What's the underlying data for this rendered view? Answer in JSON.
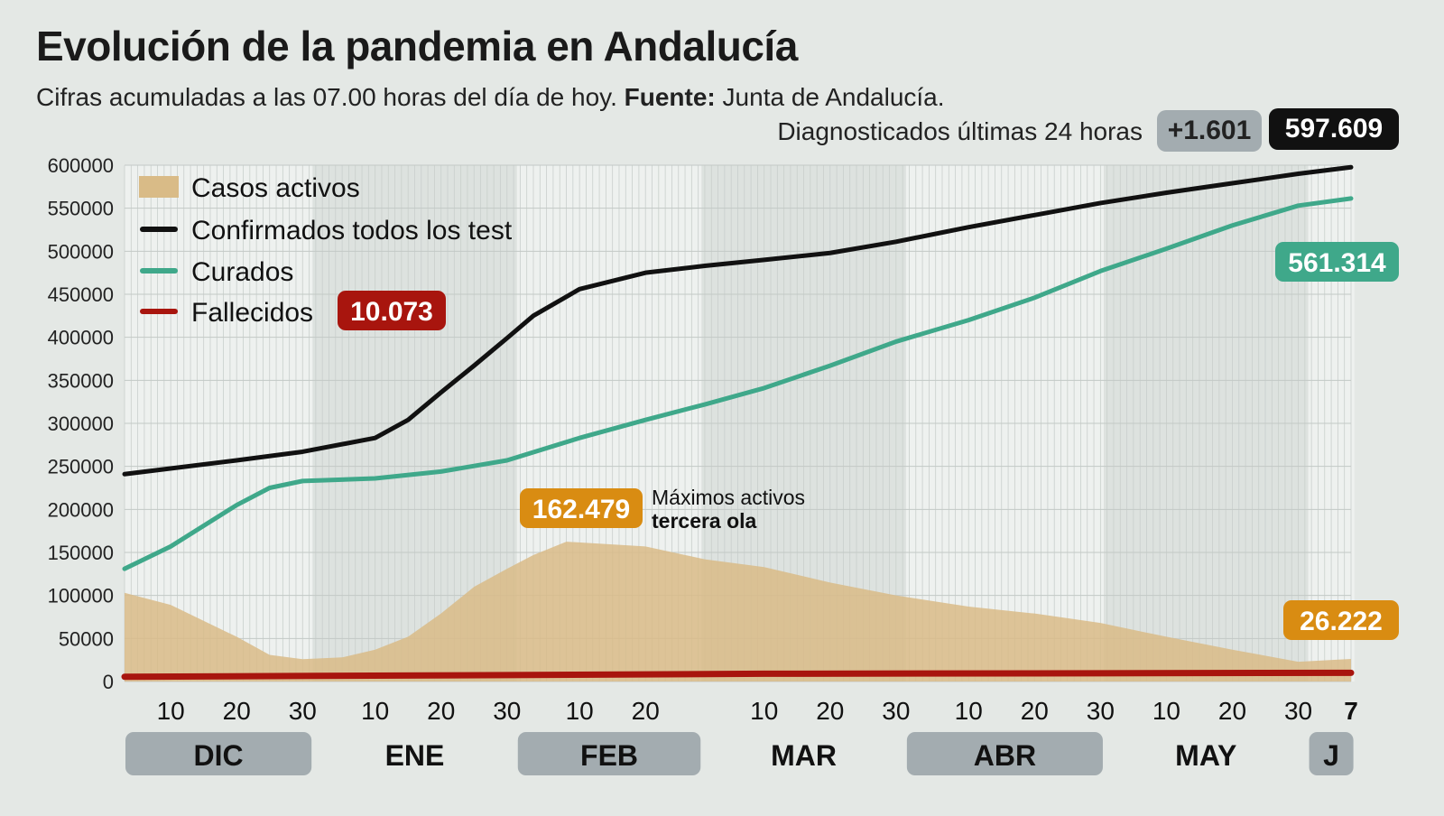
{
  "header": {
    "title": "Evolución de la pandemia en Andalucía",
    "subtitle": "Cifras acumuladas a las 07.00 horas del día de hoy.",
    "source_label": "Fuente:",
    "source": "Junta de Andalucía.",
    "diag_label": "Diagnosticados últimas 24 horas",
    "diag_delta": "+1.601",
    "diag_total": "597.609"
  },
  "chart_data": {
    "type": "area+line",
    "ylim": [
      0,
      600000
    ],
    "yticks": [
      "0",
      "50000",
      "100000",
      "150000",
      "200000",
      "250000",
      "300000",
      "350000",
      "400000",
      "450000",
      "500000",
      "550000",
      "600000"
    ],
    "xticks": [
      {
        "date": "12-10",
        "label": "10"
      },
      {
        "date": "12-20",
        "label": "20"
      },
      {
        "date": "12-30",
        "label": "30"
      },
      {
        "date": "01-10",
        "label": "10"
      },
      {
        "date": "01-20",
        "label": "20"
      },
      {
        "date": "01-30",
        "label": "30"
      },
      {
        "date": "02-10",
        "label": "10"
      },
      {
        "date": "02-20",
        "label": "20"
      },
      {
        "date": "03-10",
        "label": "10"
      },
      {
        "date": "03-20",
        "label": "20"
      },
      {
        "date": "03-30",
        "label": "30"
      },
      {
        "date": "04-10",
        "label": "10"
      },
      {
        "date": "04-20",
        "label": "20"
      },
      {
        "date": "04-30",
        "label": "30"
      },
      {
        "date": "05-10",
        "label": "10"
      },
      {
        "date": "05-20",
        "label": "20"
      },
      {
        "date": "05-30",
        "label": "30"
      },
      {
        "date": "06-07",
        "label": "7"
      }
    ],
    "months": [
      {
        "label": "DIC",
        "start": "12-03",
        "end": "12-31",
        "pill": true
      },
      {
        "label": "ENE",
        "start": "01-01",
        "end": "01-31",
        "pill": false
      },
      {
        "label": "FEB",
        "start": "02-01",
        "end": "02-28",
        "pill": true
      },
      {
        "label": "MAR",
        "start": "03-01",
        "end": "03-31",
        "pill": false
      },
      {
        "label": "ABR",
        "start": "04-01",
        "end": "04-30",
        "pill": true
      },
      {
        "label": "MAY",
        "start": "05-01",
        "end": "05-31",
        "pill": false
      },
      {
        "label": "J",
        "start": "06-01",
        "end": "06-07",
        "pill": true
      }
    ],
    "series": [
      {
        "name": "Casos activos",
        "kind": "area",
        "color": "#d9bb87",
        "points": [
          [
            "12-03",
            103000
          ],
          [
            "12-10",
            89000
          ],
          [
            "12-20",
            52000
          ],
          [
            "12-25",
            31000
          ],
          [
            "12-30",
            26000
          ],
          [
            "01-05",
            28000
          ],
          [
            "01-10",
            37000
          ],
          [
            "01-15",
            52000
          ],
          [
            "01-20",
            79000
          ],
          [
            "01-25",
            110000
          ],
          [
            "01-30",
            131000
          ],
          [
            "02-03",
            147000
          ],
          [
            "02-08",
            162479
          ],
          [
            "02-20",
            157000
          ],
          [
            "03-01",
            142000
          ],
          [
            "03-10",
            133000
          ],
          [
            "03-20",
            115000
          ],
          [
            "03-30",
            100000
          ],
          [
            "04-10",
            87000
          ],
          [
            "04-20",
            79000
          ],
          [
            "04-30",
            68000
          ],
          [
            "05-10",
            52000
          ],
          [
            "05-20",
            37000
          ],
          [
            "05-30",
            23000
          ],
          [
            "06-07",
            26222
          ]
        ]
      },
      {
        "name": "Confirmados todos los test",
        "kind": "line",
        "color": "#111111",
        "points": [
          [
            "12-03",
            241000
          ],
          [
            "12-20",
            257000
          ],
          [
            "12-30",
            267000
          ],
          [
            "01-10",
            283000
          ],
          [
            "01-15",
            304000
          ],
          [
            "01-20",
            336000
          ],
          [
            "01-25",
            367000
          ],
          [
            "01-30",
            399000
          ],
          [
            "02-03",
            425000
          ],
          [
            "02-10",
            456000
          ],
          [
            "02-20",
            475000
          ],
          [
            "03-01",
            483000
          ],
          [
            "03-10",
            490000
          ],
          [
            "03-20",
            498000
          ],
          [
            "03-30",
            511000
          ],
          [
            "04-10",
            528000
          ],
          [
            "04-20",
            542000
          ],
          [
            "04-30",
            556000
          ],
          [
            "05-10",
            568000
          ],
          [
            "05-20",
            579000
          ],
          [
            "05-30",
            590000
          ],
          [
            "06-07",
            597609
          ]
        ]
      },
      {
        "name": "Curados",
        "kind": "line",
        "color": "#3fa88a",
        "points": [
          [
            "12-03",
            131000
          ],
          [
            "12-10",
            157000
          ],
          [
            "12-20",
            205000
          ],
          [
            "12-25",
            225000
          ],
          [
            "12-30",
            233000
          ],
          [
            "01-10",
            236000
          ],
          [
            "01-20",
            244000
          ],
          [
            "01-30",
            257000
          ],
          [
            "02-10",
            283000
          ],
          [
            "02-20",
            304000
          ],
          [
            "03-01",
            322000
          ],
          [
            "03-10",
            341000
          ],
          [
            "03-20",
            367000
          ],
          [
            "03-30",
            395000
          ],
          [
            "04-10",
            420000
          ],
          [
            "04-20",
            446000
          ],
          [
            "04-30",
            477000
          ],
          [
            "05-10",
            503000
          ],
          [
            "05-20",
            530000
          ],
          [
            "05-30",
            553000
          ],
          [
            "06-07",
            561314
          ]
        ]
      },
      {
        "name": "Fallecidos",
        "kind": "line",
        "color": "#a8150e",
        "points": [
          [
            "12-03",
            5500
          ],
          [
            "01-01",
            6500
          ],
          [
            "01-30",
            7500
          ],
          [
            "03-10",
            9000
          ],
          [
            "04-30",
            9600
          ],
          [
            "06-07",
            10073
          ]
        ]
      }
    ],
    "legend_position": "top-left",
    "annotations": {
      "fallecidos": "10.073",
      "curados": "561.314",
      "activos_last": "26.222",
      "peak_value": "162.479",
      "peak_text1": "Máximos activos",
      "peak_text2": "tercera ola"
    },
    "colors": {
      "orange_badge": "#d98c12",
      "teal_badge": "#3fa88a",
      "red_badge": "#a8150e",
      "gray_badge": "#a3acb0",
      "black_badge": "#111111",
      "month_pill": "#a3acb0"
    }
  }
}
